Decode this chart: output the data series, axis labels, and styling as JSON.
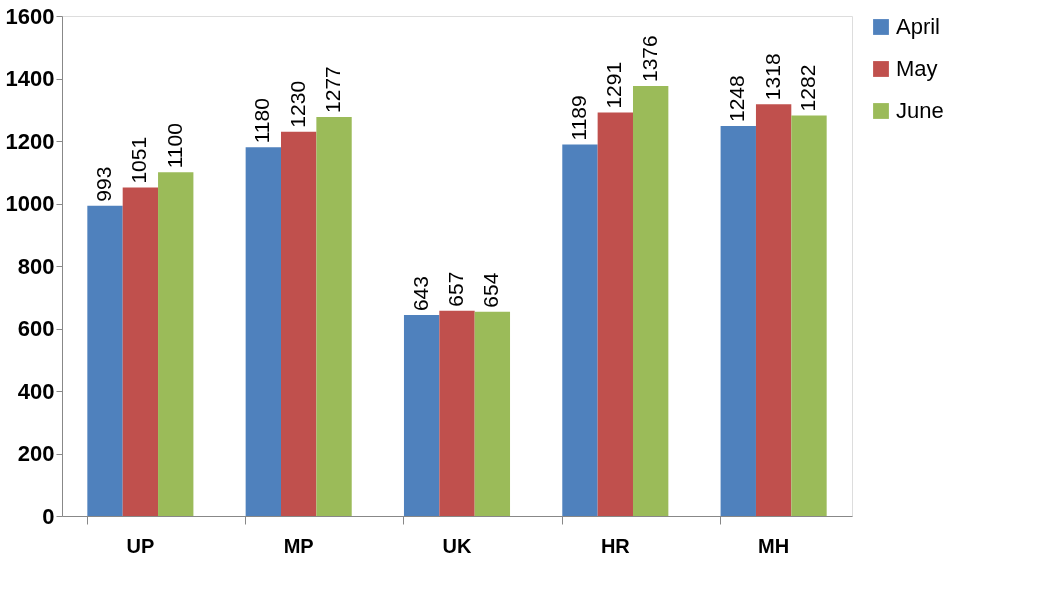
{
  "chart_data": {
    "type": "bar",
    "categories": [
      "UP",
      "MP",
      "UK",
      "HR",
      "MH"
    ],
    "series": [
      {
        "name": "April",
        "color": "#4f81bd",
        "values": [
          993,
          1180,
          643,
          1189,
          1248
        ]
      },
      {
        "name": "May",
        "color": "#c0504d",
        "values": [
          1051,
          1230,
          657,
          1291,
          1318
        ]
      },
      {
        "name": "June",
        "color": "#9bbb59",
        "values": [
          1100,
          1277,
          654,
          1376,
          1282
        ]
      }
    ],
    "ylim": [
      0,
      1600
    ],
    "yticks": [
      0,
      200,
      400,
      600,
      800,
      1000,
      1200,
      1400,
      1600
    ],
    "grid": false,
    "legend": "right",
    "data_labels": true
  }
}
